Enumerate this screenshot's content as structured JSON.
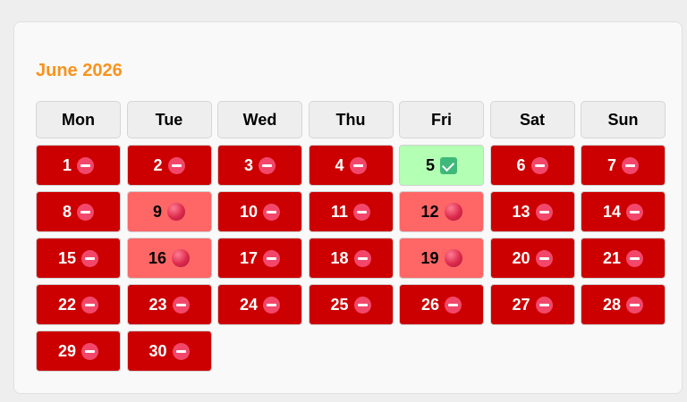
{
  "calendar": {
    "title": "June 2026",
    "weekdays": [
      "Mon",
      "Tue",
      "Wed",
      "Thu",
      "Fri",
      "Sat",
      "Sun"
    ],
    "first_weekday_offset": 0,
    "status_colors": {
      "unavailable": "#cc0000",
      "partial": "#ff6666",
      "available": "#b3ffb3"
    },
    "status_icons": {
      "unavailable": "no-entry-icon",
      "partial": "red-ball-icon",
      "available": "check-mark-icon"
    },
    "days": [
      {
        "day": "1",
        "status": "unavailable"
      },
      {
        "day": "2",
        "status": "unavailable"
      },
      {
        "day": "3",
        "status": "unavailable"
      },
      {
        "day": "4",
        "status": "unavailable"
      },
      {
        "day": "5",
        "status": "available"
      },
      {
        "day": "6",
        "status": "unavailable"
      },
      {
        "day": "7",
        "status": "unavailable"
      },
      {
        "day": "8",
        "status": "unavailable"
      },
      {
        "day": "9",
        "status": "partial"
      },
      {
        "day": "10",
        "status": "unavailable"
      },
      {
        "day": "11",
        "status": "unavailable"
      },
      {
        "day": "12",
        "status": "partial"
      },
      {
        "day": "13",
        "status": "unavailable"
      },
      {
        "day": "14",
        "status": "unavailable"
      },
      {
        "day": "15",
        "status": "unavailable"
      },
      {
        "day": "16",
        "status": "partial"
      },
      {
        "day": "17",
        "status": "unavailable"
      },
      {
        "day": "18",
        "status": "unavailable"
      },
      {
        "day": "19",
        "status": "partial"
      },
      {
        "day": "20",
        "status": "unavailable"
      },
      {
        "day": "21",
        "status": "unavailable"
      },
      {
        "day": "22",
        "status": "unavailable"
      },
      {
        "day": "23",
        "status": "unavailable"
      },
      {
        "day": "24",
        "status": "unavailable"
      },
      {
        "day": "25",
        "status": "unavailable"
      },
      {
        "day": "26",
        "status": "unavailable"
      },
      {
        "day": "27",
        "status": "unavailable"
      },
      {
        "day": "28",
        "status": "unavailable"
      },
      {
        "day": "29",
        "status": "unavailable"
      },
      {
        "day": "30",
        "status": "unavailable"
      }
    ]
  }
}
